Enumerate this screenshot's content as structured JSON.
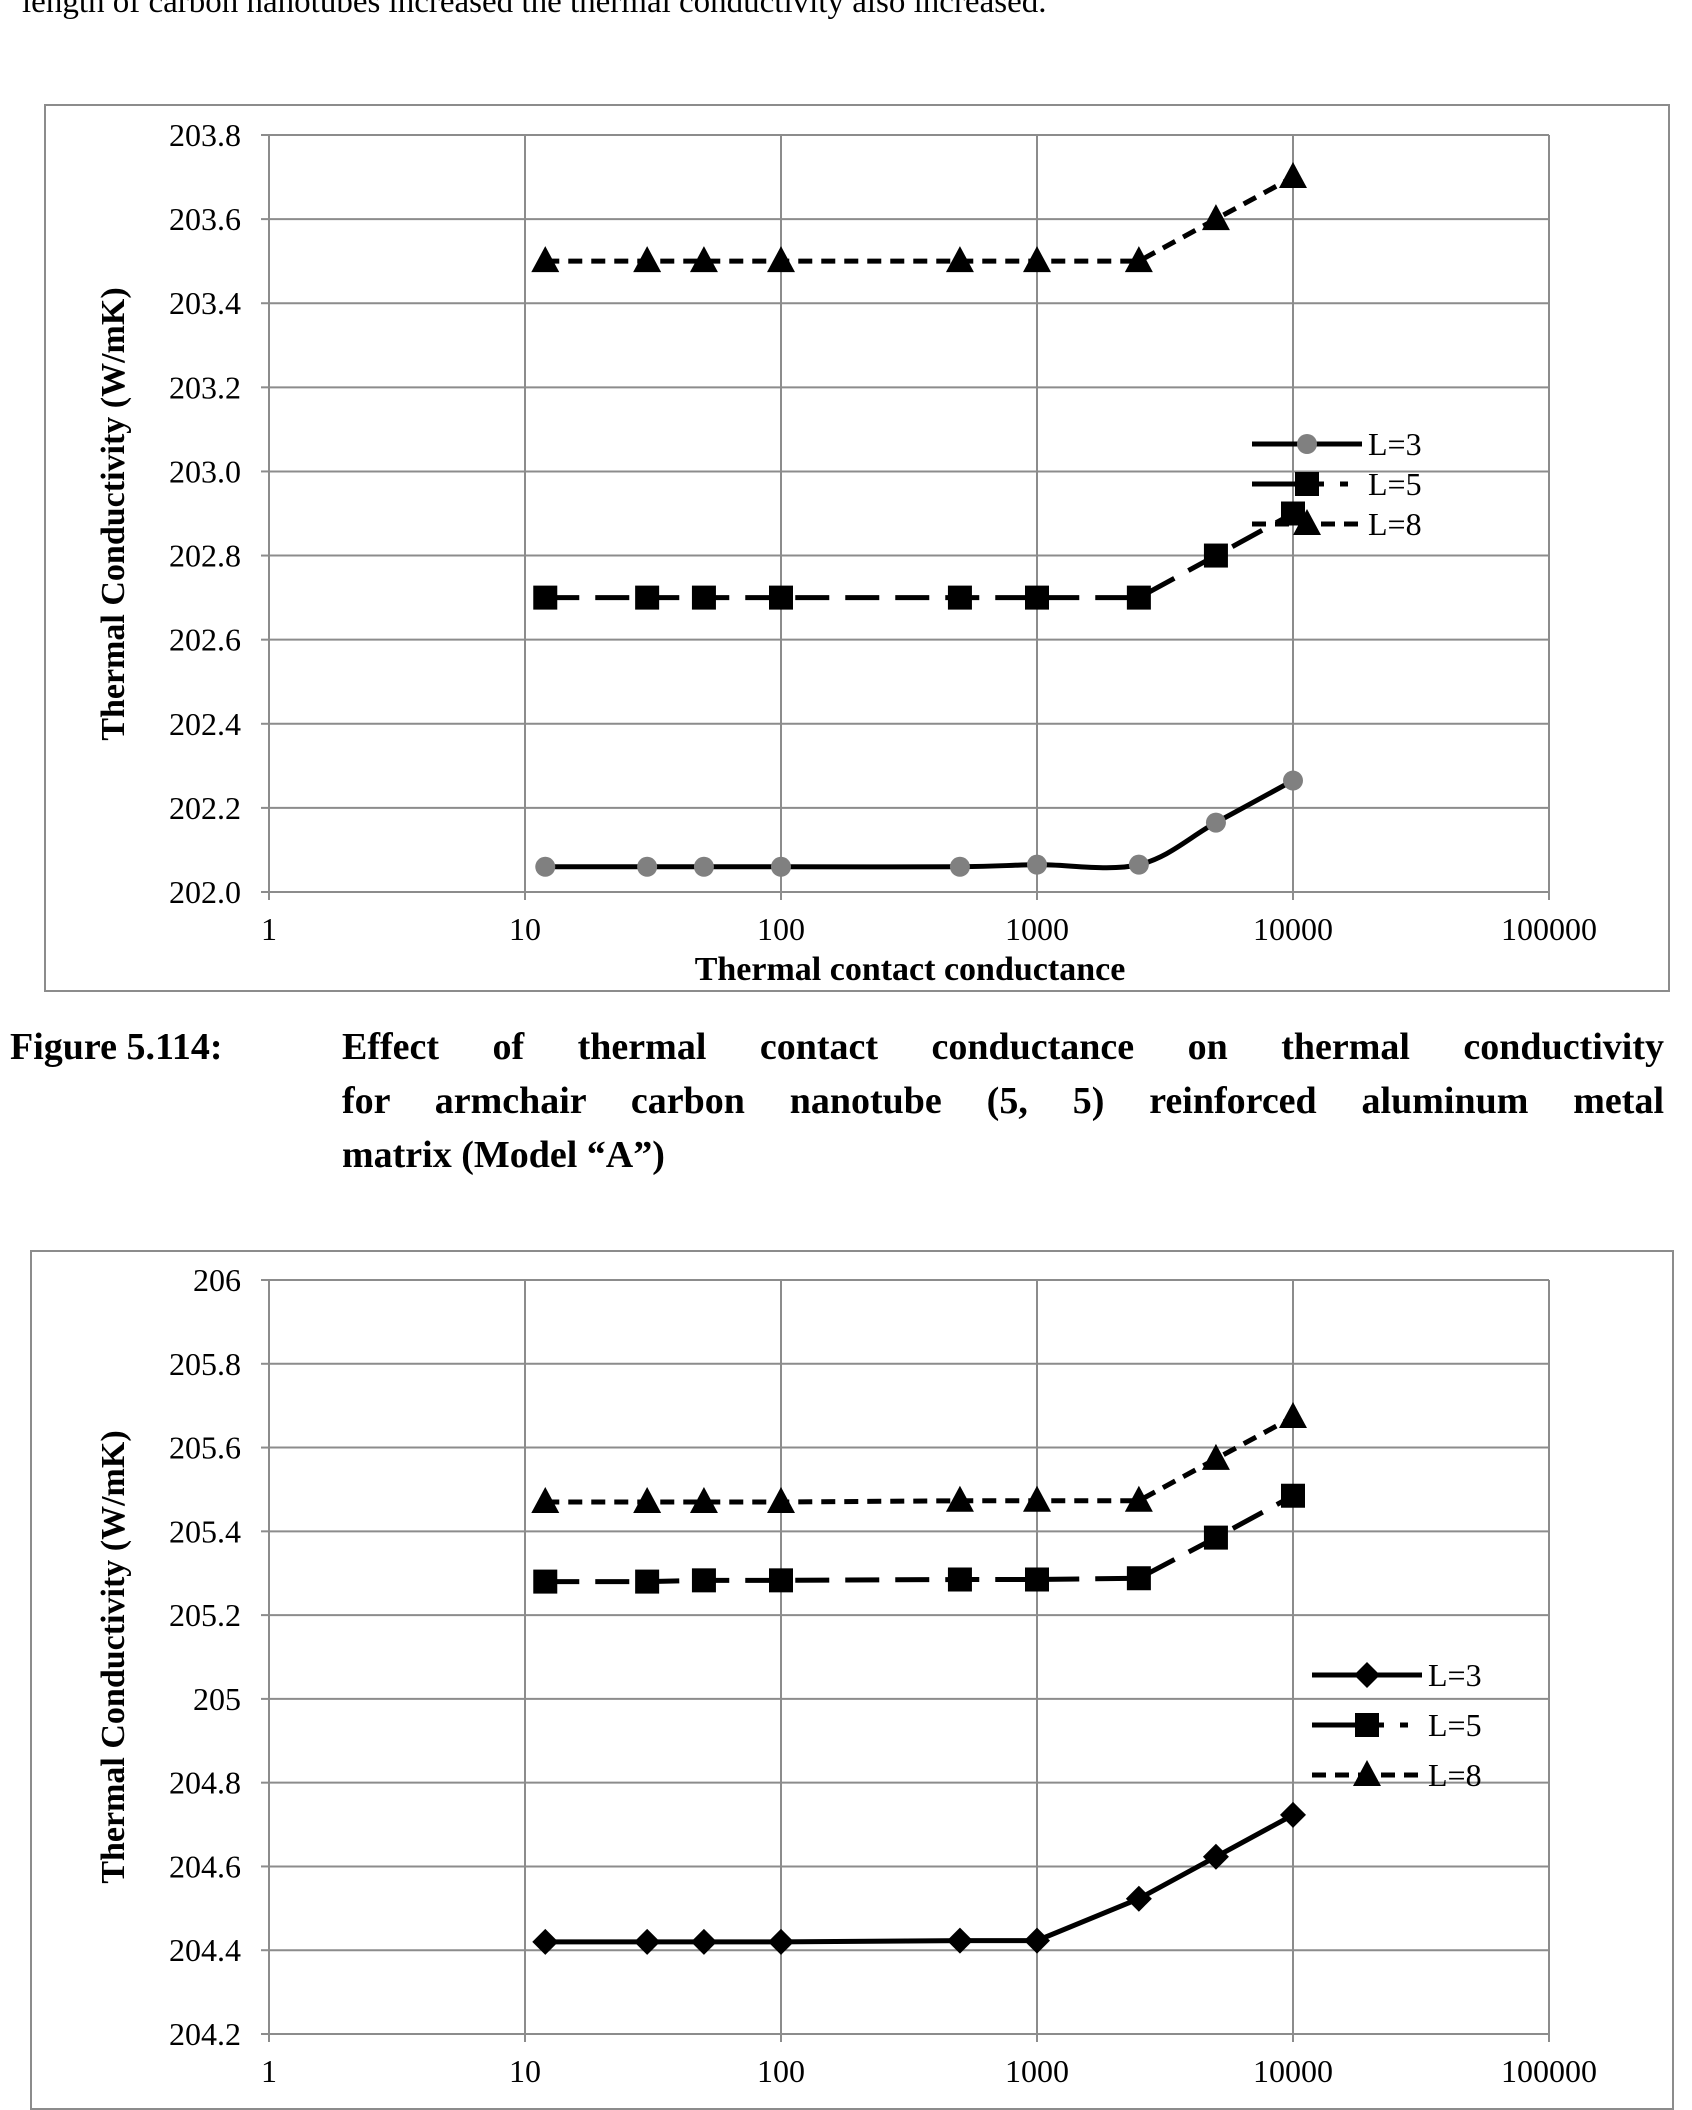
{
  "intro_text": "length of carbon nanotubes increased the thermal conductivity also increased.",
  "caption1": {
    "label": "Figure 5.114:",
    "lines": [
      "Effect of thermal contact conductance on thermal conductivity",
      "for armchair carbon nanotube (5, 5) reinforced aluminum metal",
      "matrix (Model “A”)"
    ]
  },
  "chart_data": [
    {
      "type": "line",
      "xscale": "log",
      "xlabel": "Thermal contact conductance",
      "ylabel": "Thermal Conductivity (W/mK)",
      "xlim": [
        1,
        100000
      ],
      "ylim": [
        202.0,
        203.8
      ],
      "x_ticks": [
        "1",
        "10",
        "100",
        "1000",
        "10000",
        "100000"
      ],
      "y_ticks": [
        "202.0",
        "202.2",
        "202.4",
        "202.6",
        "202.8",
        "203.0",
        "203.2",
        "203.4",
        "203.6",
        "203.8"
      ],
      "grid": true,
      "legend_position": "right",
      "x": [
        12,
        30,
        50,
        100,
        500,
        1000,
        2500,
        5000,
        10000
      ],
      "series": [
        {
          "name": "L=3",
          "marker": "circle",
          "marker_color": "#808080",
          "dash": "solid",
          "smooth": true,
          "values": [
            202.06,
            202.06,
            202.06,
            202.06,
            202.06,
            202.065,
            202.065,
            202.165,
            202.265
          ]
        },
        {
          "name": "L=5",
          "marker": "square",
          "marker_color": "#000000",
          "dash": "longdash",
          "values": [
            202.7,
            202.7,
            202.7,
            202.7,
            202.7,
            202.7,
            202.7,
            202.8,
            202.9
          ]
        },
        {
          "name": "L=8",
          "marker": "triangle",
          "marker_color": "#000000",
          "dash": "dash",
          "values": [
            203.5,
            203.5,
            203.5,
            203.5,
            203.5,
            203.5,
            203.5,
            203.6,
            203.7
          ]
        }
      ]
    },
    {
      "type": "line",
      "xscale": "log",
      "xlabel": "",
      "ylabel": "Thermal Conductivity (W/mK)",
      "xlim": [
        1,
        100000
      ],
      "ylim": [
        204.2,
        206
      ],
      "x_ticks": [
        "1",
        "10",
        "100",
        "1000",
        "10000",
        "100000"
      ],
      "y_ticks": [
        "204.2",
        "204.4",
        "204.6",
        "204.8",
        "205",
        "205.2",
        "205.4",
        "205.6",
        "205.8",
        "206"
      ],
      "grid": true,
      "legend_position": "right",
      "x": [
        12,
        30,
        50,
        100,
        500,
        1000,
        2500,
        5000,
        10000
      ],
      "series": [
        {
          "name": "L=3",
          "marker": "diamond",
          "marker_color": "#000000",
          "dash": "solid",
          "values": [
            204.42,
            204.42,
            204.42,
            204.42,
            204.423,
            204.423,
            204.523,
            204.623,
            204.723
          ]
        },
        {
          "name": "L=5",
          "marker": "square",
          "marker_color": "#000000",
          "dash": "longdash",
          "values": [
            205.28,
            205.28,
            205.283,
            205.283,
            205.285,
            205.285,
            205.288,
            205.385,
            205.485
          ]
        },
        {
          "name": "L=8",
          "marker": "triangle",
          "marker_color": "#000000",
          "dash": "dash",
          "values": [
            205.47,
            205.47,
            205.47,
            205.47,
            205.473,
            205.473,
            205.473,
            205.573,
            205.673
          ]
        }
      ]
    }
  ]
}
